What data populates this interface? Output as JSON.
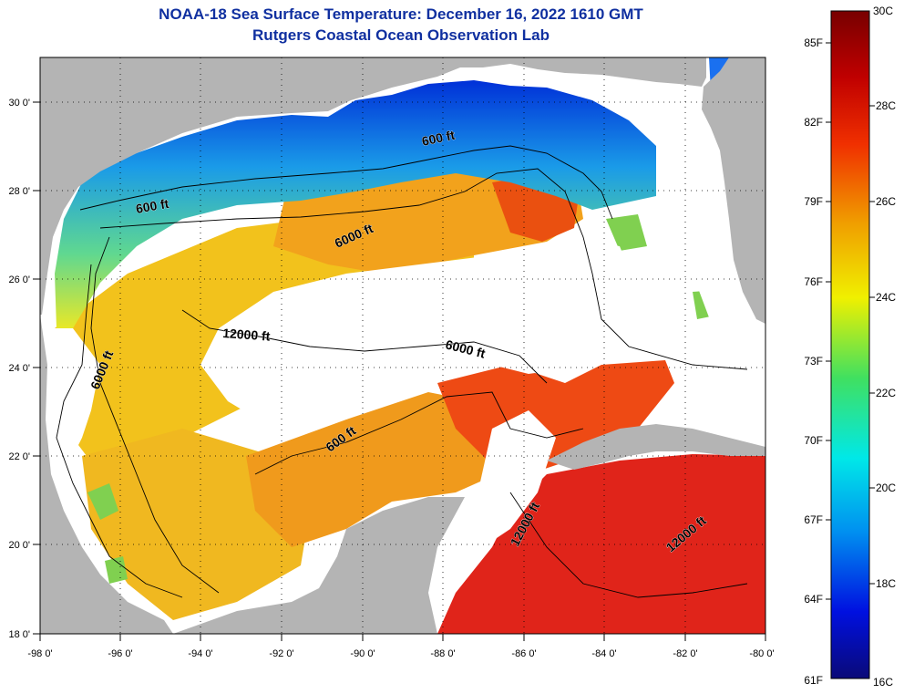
{
  "header": {
    "title": "NOAA-18 Sea Surface Temperature:  December 16, 2022 1610 GMT",
    "subtitle": "Rutgers Coastal Ocean Observation Lab"
  },
  "map": {
    "region": "Gulf of Mexico",
    "lon_range": [
      -98,
      -80
    ],
    "lat_range": [
      18,
      31
    ],
    "x_ticks": [
      "-98 0'",
      "-96 0'",
      "-94 0'",
      "-92 0'",
      "-90 0'",
      "-88 0'",
      "-86 0'",
      "-84 0'",
      "-82 0'",
      "-80 0'"
    ],
    "y_ticks": [
      "18 0'",
      "20 0'",
      "22 0'",
      "24 0'",
      "26 0'",
      "28 0'",
      "30 0'"
    ],
    "grid": "dotted",
    "land_color": "#b4b4b4",
    "cloud_color": "#ffffff",
    "contour_labels": [
      "600 ft",
      "600 ft",
      "6000 ft",
      "12000 ft",
      "6000 ft",
      "6000 ft",
      "600 ft",
      "12000 ft",
      "12000 ft"
    ]
  },
  "colorbar": {
    "fahrenheit_labels": [
      "85F",
      "82F",
      "79F",
      "76F",
      "73F",
      "70F",
      "67F",
      "64F",
      "61F"
    ],
    "celsius_labels": [
      "30C",
      "28C",
      "26C",
      "24C",
      "22C",
      "20C",
      "18C",
      "16C"
    ],
    "range_c": [
      16,
      30
    ],
    "stops": [
      "#0a0a78",
      "#0010e0",
      "#0090f0",
      "#00e8e8",
      "#40e060",
      "#f0f000",
      "#f0a000",
      "#f03000",
      "#c00000",
      "#780000"
    ]
  }
}
